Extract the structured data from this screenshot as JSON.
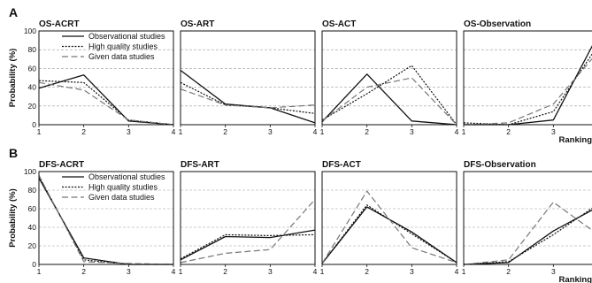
{
  "chart_data": {
    "type": "line",
    "rows": [
      {
        "letter": "A",
        "ylabel": "Probability (%)",
        "xlabel": "Ranking",
        "panels": [
          {
            "title": "OS-ACRT",
            "x": [
              1,
              2,
              3,
              4
            ],
            "ylim": [
              0,
              100
            ],
            "series": [
              {
                "name": "Observational studies",
                "style": "solid",
                "values": [
                  39,
                  53,
                  4,
                  0
                ]
              },
              {
                "name": "High quality studies",
                "style": "dotted",
                "values": [
                  47,
                  45,
                  5,
                  0
                ]
              },
              {
                "name": "Given data studies",
                "style": "dashed",
                "values": [
                  45,
                  37,
                  5,
                  0
                ]
              }
            ]
          },
          {
            "title": "OS-ART",
            "x": [
              1,
              2,
              3,
              4
            ],
            "ylim": [
              0,
              100
            ],
            "series": [
              {
                "name": "Observational studies",
                "style": "solid",
                "values": [
                  58,
                  22,
                  18,
                  2
                ]
              },
              {
                "name": "High quality studies",
                "style": "dotted",
                "values": [
                  45,
                  21,
                  18,
                  12
                ]
              },
              {
                "name": "Given data studies",
                "style": "dashed",
                "values": [
                  38,
                  21,
                  18,
                  21
                ]
              }
            ]
          },
          {
            "title": "OS-ACT",
            "x": [
              1,
              2,
              3,
              4
            ],
            "ylim": [
              0,
              100
            ],
            "series": [
              {
                "name": "Observational studies",
                "style": "solid",
                "values": [
                  3,
                  54,
                  4,
                  0
                ]
              },
              {
                "name": "High quality studies",
                "style": "dotted",
                "values": [
                  5,
                  33,
                  63,
                  0
                ]
              },
              {
                "name": "Given data studies",
                "style": "dashed",
                "values": [
                  4,
                  40,
                  50,
                  0
                ]
              }
            ]
          },
          {
            "title": "OS-Observation",
            "x": [
              1,
              2,
              3,
              4
            ],
            "ylim": [
              0,
              100
            ],
            "series": [
              {
                "name": "Observational studies",
                "style": "solid",
                "values": [
                  0,
                  0,
                  5,
                  96
                ]
              },
              {
                "name": "High quality studies",
                "style": "dotted",
                "values": [
                  2,
                  0,
                  14,
                  85
                ]
              },
              {
                "name": "Given data studies",
                "style": "dashed",
                "values": [
                  0,
                  2,
                  22,
                  78
                ]
              }
            ]
          }
        ]
      },
      {
        "letter": "B",
        "ylabel": "Probability (%)",
        "xlabel": "Ranking",
        "panels": [
          {
            "title": "DFS-ACRT",
            "x": [
              1,
              2,
              3,
              4
            ],
            "ylim": [
              0,
              100
            ],
            "series": [
              {
                "name": "Observational studies",
                "style": "solid",
                "values": [
                  93,
                  7,
                  0,
                  0
                ]
              },
              {
                "name": "High quality studies",
                "style": "dotted",
                "values": [
                  95,
                  5,
                  0,
                  0
                ]
              },
              {
                "name": "Given data studies",
                "style": "dashed",
                "values": [
                  96,
                  3,
                  1,
                  0
                ]
              }
            ]
          },
          {
            "title": "DFS-ART",
            "x": [
              1,
              2,
              3,
              4
            ],
            "ylim": [
              0,
              100
            ],
            "series": [
              {
                "name": "Observational studies",
                "style": "solid",
                "values": [
                  5,
                  30,
                  29,
                  37
                ]
              },
              {
                "name": "High quality studies",
                "style": "dotted",
                "values": [
                  6,
                  32,
                  31,
                  32
                ]
              },
              {
                "name": "Given data studies",
                "style": "dashed",
                "values": [
                  2,
                  12,
                  16,
                  70
                ]
              }
            ]
          },
          {
            "title": "DFS-ACT",
            "x": [
              1,
              2,
              3,
              4
            ],
            "ylim": [
              0,
              100
            ],
            "series": [
              {
                "name": "Observational studies",
                "style": "solid",
                "values": [
                  1,
                  62,
                  35,
                  2
                ]
              },
              {
                "name": "High quality studies",
                "style": "dotted",
                "values": [
                  1,
                  64,
                  33,
                  2
                ]
              },
              {
                "name": "Given data studies",
                "style": "dashed",
                "values": [
                  1,
                  79,
                  18,
                  2
                ]
              }
            ]
          },
          {
            "title": "DFS-Observation",
            "x": [
              1,
              2,
              3,
              4
            ],
            "ylim": [
              0,
              100
            ],
            "series": [
              {
                "name": "Observational studies",
                "style": "solid",
                "values": [
                  0,
                  2,
                  36,
                  62
                ]
              },
              {
                "name": "High quality studies",
                "style": "dotted",
                "values": [
                  0,
                  3,
                  32,
                  65
                ]
              },
              {
                "name": "Given data studies",
                "style": "dashed",
                "values": [
                  0,
                  5,
                  67,
                  32
                ]
              }
            ]
          }
        ]
      }
    ],
    "yticks": [
      0,
      20,
      40,
      60,
      80,
      100
    ],
    "xticks": [
      1,
      2,
      3,
      4
    ],
    "grid": "horizontal dashed",
    "legend": {
      "placement": "top-right of first panel in each row",
      "entries": [
        {
          "label": "Observational studies",
          "style": "solid"
        },
        {
          "label": "High quality studies",
          "style": "dotted"
        },
        {
          "label": "Given data studies",
          "style": "dashed"
        }
      ]
    },
    "colors": {
      "solid": "#111111",
      "dotted": "#111111",
      "dashed": "#777777",
      "grid": "#9a9a9a"
    }
  }
}
